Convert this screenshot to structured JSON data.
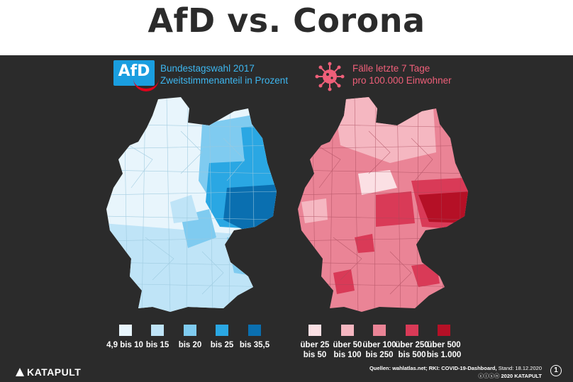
{
  "title": "AfD vs. Corona",
  "left_panel": {
    "logo_text": "AfD",
    "legend_title_line1": "Bundestagswahl 2017",
    "legend_title_line2": "Zweitstimmenanteil in Prozent",
    "legend": [
      {
        "label": "4,9 bis 10",
        "color": "#e8f5fc"
      },
      {
        "label": "bis 15",
        "color": "#bfe4f7"
      },
      {
        "label": "bis 20",
        "color": "#7fcbf0"
      },
      {
        "label": "bis 25",
        "color": "#2aa7e3"
      },
      {
        "label": "bis 35,5",
        "color": "#0a6fb0"
      }
    ]
  },
  "right_panel": {
    "legend_title_line1": "Fälle letzte 7 Tage",
    "legend_title_line2": "pro 100.000 Einwohner",
    "legend": [
      {
        "label_line1": "über 25",
        "label_line2": "bis 50",
        "color": "#fbe0e4"
      },
      {
        "label_line1": "über 50",
        "label_line2": "bis 100",
        "color": "#f5b7c1"
      },
      {
        "label_line1": "über 100",
        "label_line2": "bis 250",
        "color": "#ea8496"
      },
      {
        "label_line1": "über 250",
        "label_line2": "bis 500",
        "color": "#d93a57"
      },
      {
        "label_line1": "über 500",
        "label_line2": "bis 1.000",
        "color": "#b51026"
      }
    ]
  },
  "footer": {
    "brand": "KATAPULT",
    "sources_label": "Quellen:",
    "sources_text": "wahlatlas.net; RKI: COVID-19-Dashboard,",
    "stand": "Stand: 18.12.2020",
    "copyright": "2020 KATAPULT",
    "page_number": "1"
  }
}
